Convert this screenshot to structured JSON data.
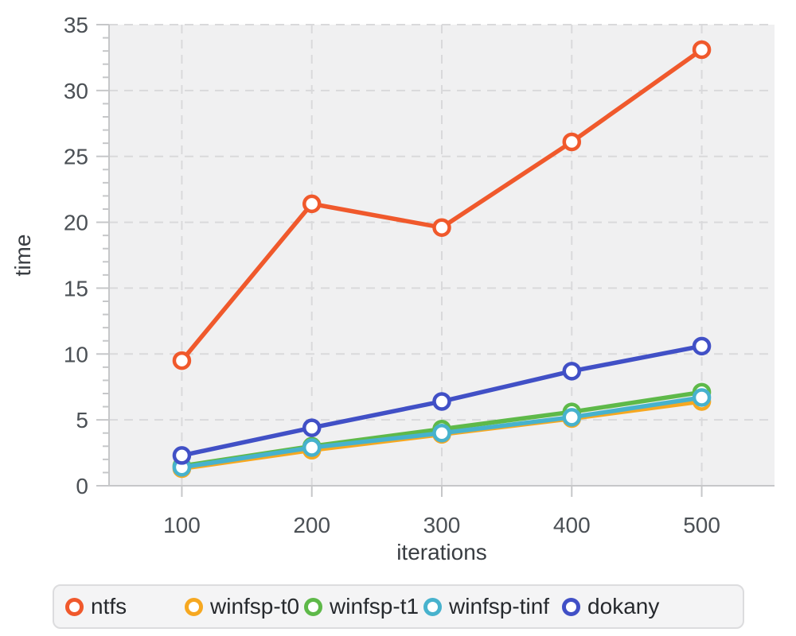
{
  "chart_data": {
    "type": "line",
    "title": "",
    "xlabel": "iterations",
    "ylabel": "time",
    "x": [
      100,
      200,
      300,
      400,
      500
    ],
    "x_ticks": [
      100,
      200,
      300,
      400,
      500
    ],
    "y_major_ticks": [
      0,
      5,
      10,
      15,
      20,
      25,
      30,
      35
    ],
    "y_minor_tick_step": 1,
    "xlim": [
      44,
      556
    ],
    "ylim": [
      0,
      35
    ],
    "grid": "dashed",
    "legend_position": "bottom",
    "series": [
      {
        "name": "ntfs",
        "color": "#f0592c",
        "values": [
          9.5,
          21.4,
          19.6,
          26.1,
          33.1
        ]
      },
      {
        "name": "winfsp-t0",
        "color": "#f6a821",
        "values": [
          1.3,
          2.7,
          3.9,
          5.1,
          6.4
        ]
      },
      {
        "name": "winfsp-t1",
        "color": "#5eb949",
        "values": [
          1.5,
          3.0,
          4.3,
          5.6,
          7.1
        ]
      },
      {
        "name": "winfsp-tinf",
        "color": "#47b2cd",
        "values": [
          1.4,
          2.9,
          4.0,
          5.2,
          6.7
        ]
      },
      {
        "name": "dokany",
        "color": "#4150c6",
        "values": [
          2.3,
          4.4,
          6.4,
          8.7,
          10.6
        ]
      }
    ],
    "marker": "open-circle"
  },
  "style_colors": {
    "plot_background": "#f0f0f1",
    "gridline": "#d9d9db",
    "axis_line": "#c6c7c9",
    "tick_label": "#4b5055",
    "axis_title": "#393d42",
    "legend_background": "#f4f4f5",
    "legend_border": "#dcdcde",
    "marker_fill": "#ffffff"
  }
}
